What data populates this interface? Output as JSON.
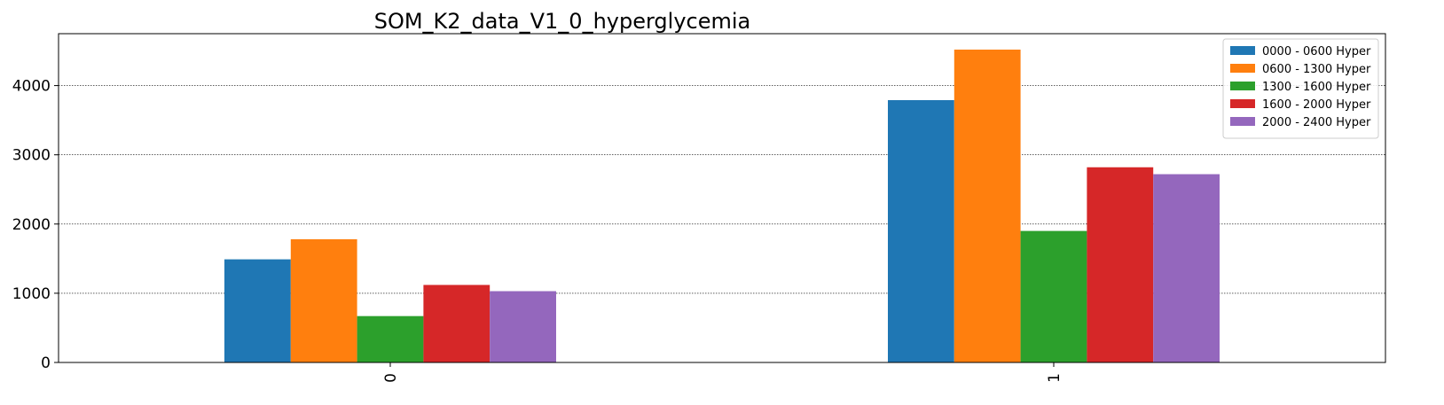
{
  "chart_data": {
    "type": "bar",
    "title": "SOM_K2_data_V1_0_hyperglycemia",
    "xlabel": "",
    "ylabel": "",
    "categories": [
      "0",
      "1"
    ],
    "series": [
      {
        "name": "0000 - 0600 Hyper",
        "color": "#1f77b4",
        "values": [
          1490,
          3790
        ]
      },
      {
        "name": "0600 - 1300 Hyper",
        "color": "#ff7f0e",
        "values": [
          1780,
          4520
        ]
      },
      {
        "name": "1300 - 1600 Hyper",
        "color": "#2ca02c",
        "values": [
          670,
          1900
        ]
      },
      {
        "name": "1600 - 2000 Hyper",
        "color": "#d62728",
        "values": [
          1120,
          2820
        ]
      },
      {
        "name": "2000 - 2400 Hyper",
        "color": "#9467bd",
        "values": [
          1030,
          2720
        ]
      }
    ],
    "ylim": [
      0,
      4750
    ],
    "yticks": [
      0,
      1000,
      2000,
      3000,
      4000
    ],
    "grid": "y-dotted",
    "legend_position": "top-right"
  }
}
